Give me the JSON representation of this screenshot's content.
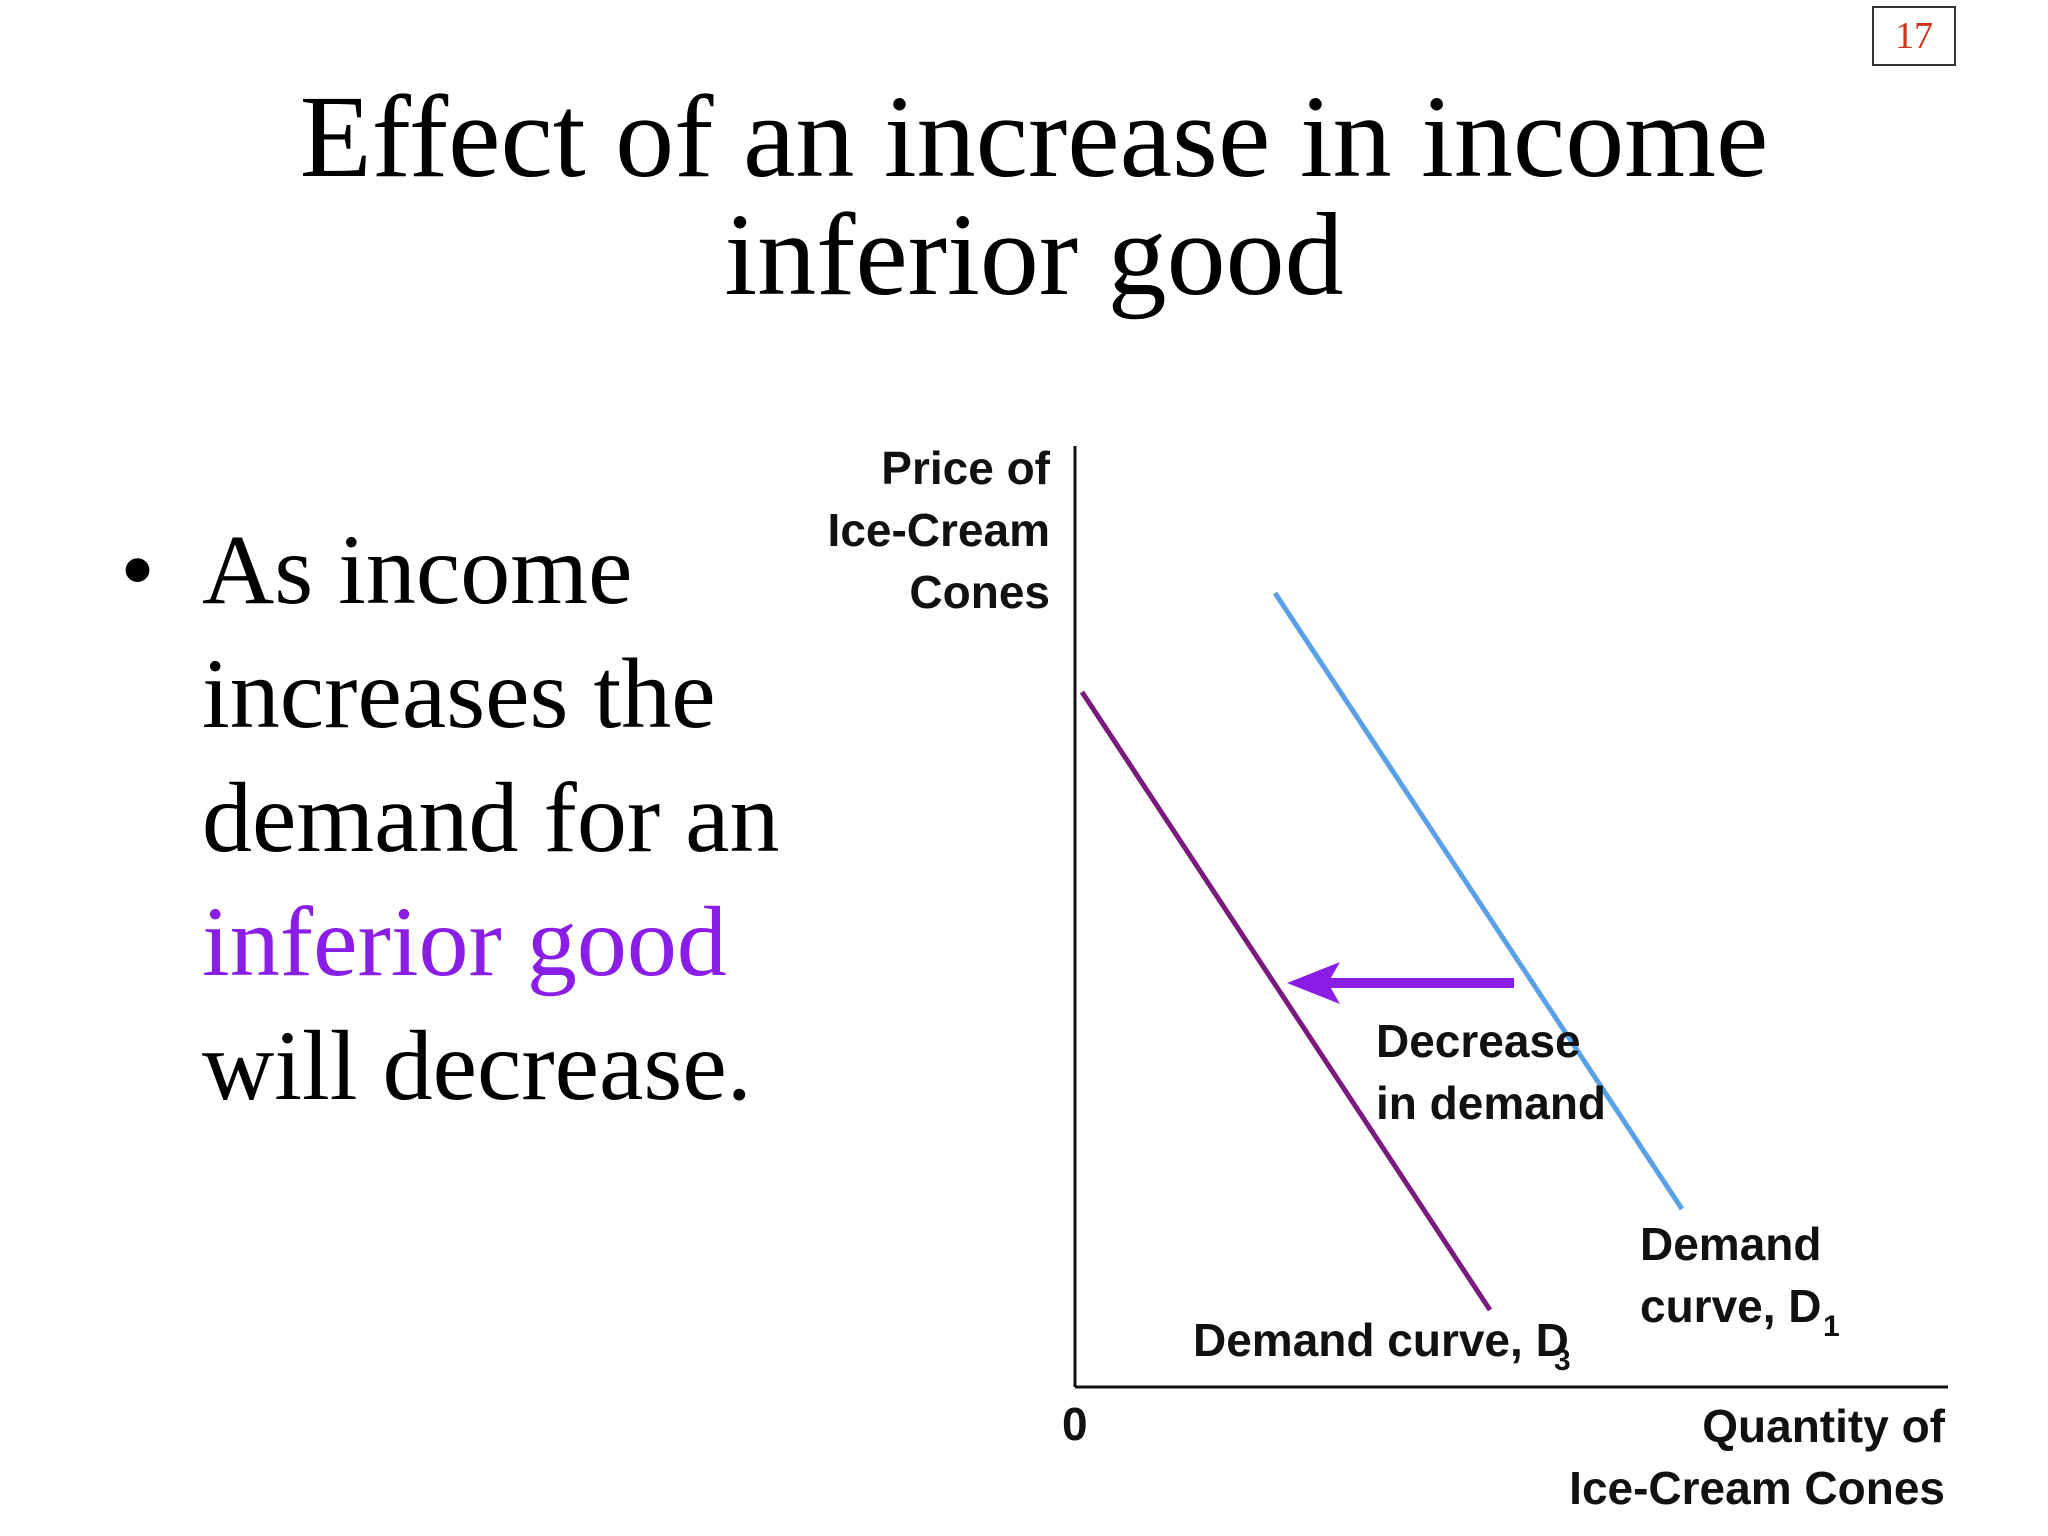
{
  "slide": {
    "number": "17",
    "title_line1": "Effect of an increase in income",
    "title_line2": "inferior good"
  },
  "bullet": {
    "dot": "•",
    "part1": "As income increases the demand for an ",
    "highlight": "inferior good",
    "part2": " will decrease.",
    "highlight_color": "#8a1ee6"
  },
  "diagram": {
    "y_axis_label": [
      "Price of",
      "Ice-Cream",
      "Cones"
    ],
    "x_axis_label": [
      "Quantity of",
      "Ice-Cream Cones"
    ],
    "origin_label": "0",
    "d1_label_line1": "Demand",
    "d1_label_line2": "curve, D",
    "d1_subscript": "1",
    "d3_label": "Demand curve, D",
    "d3_subscript": "3",
    "shift_label": [
      "Decrease",
      "in demand"
    ],
    "d1_color": "#5aa0e6",
    "d3_color": "#7a1a7e",
    "arrow_color": "#8a1ee6"
  }
}
